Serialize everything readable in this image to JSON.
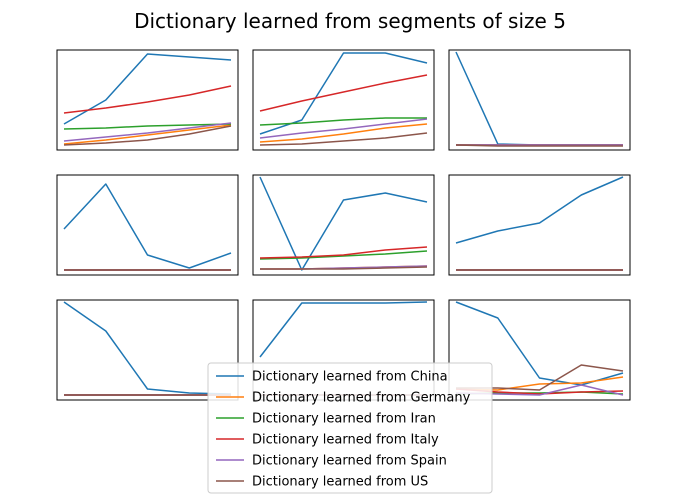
{
  "title": "Dictionary learned from segments of size 5",
  "chart_data": {
    "type": "line",
    "title": "Dictionary learned from segments of size 5",
    "layout": "3x3 grid of small line plots, no axis ticks",
    "legend_placement": "lower-center",
    "x": [
      0,
      1,
      2,
      3,
      4
    ],
    "series_names": [
      "Dictionary learned from China",
      "Dictionary learned from Germany",
      "Dictionary learned from Iran",
      "Dictionary learned from Italy",
      "Dictionary learned from Spain",
      "Dictionary learned from US"
    ],
    "colors": [
      "#1f77b4",
      "#ff7f0e",
      "#2ca02c",
      "#d62728",
      "#9467bd",
      "#8c564b"
    ],
    "panels": [
      {
        "series": [
          [
            0.26,
            0.5,
            0.96,
            0.93,
            0.9
          ],
          [
            0.06,
            0.1,
            0.15,
            0.2,
            0.25
          ],
          [
            0.21,
            0.22,
            0.24,
            0.25,
            0.26
          ],
          [
            0.37,
            0.42,
            0.48,
            0.55,
            0.64
          ],
          [
            0.09,
            0.13,
            0.17,
            0.22,
            0.27
          ],
          [
            0.05,
            0.07,
            0.1,
            0.16,
            0.24
          ]
        ]
      },
      {
        "series": [
          [
            0.16,
            0.3,
            0.97,
            0.97,
            0.87
          ],
          [
            0.08,
            0.11,
            0.16,
            0.22,
            0.26
          ],
          [
            0.25,
            0.27,
            0.3,
            0.32,
            0.32
          ],
          [
            0.39,
            0.49,
            0.58,
            0.67,
            0.75
          ],
          [
            0.12,
            0.17,
            0.21,
            0.26,
            0.31
          ],
          [
            0.05,
            0.06,
            0.09,
            0.12,
            0.17
          ]
        ]
      },
      {
        "series": [
          [
            0.98,
            0.06,
            0.05,
            0.05,
            0.05
          ],
          [
            0.05,
            0.05,
            0.05,
            0.05,
            0.05
          ],
          [
            0.05,
            0.05,
            0.05,
            0.05,
            0.05
          ],
          [
            0.05,
            0.05,
            0.05,
            0.05,
            0.05
          ],
          [
            0.05,
            0.05,
            0.05,
            0.05,
            0.05
          ],
          [
            0.05,
            0.04,
            0.04,
            0.04,
            0.04
          ]
        ]
      },
      {
        "series": [
          [
            0.46,
            0.91,
            0.2,
            0.07,
            0.22
          ],
          [
            0.05,
            0.05,
            0.05,
            0.05,
            0.05
          ],
          [
            0.05,
            0.05,
            0.05,
            0.05,
            0.05
          ],
          [
            0.05,
            0.05,
            0.05,
            0.05,
            0.05
          ],
          [
            0.05,
            0.05,
            0.05,
            0.05,
            0.05
          ],
          [
            0.05,
            0.05,
            0.05,
            0.05,
            0.05
          ]
        ]
      },
      {
        "series": [
          [
            0.98,
            0.05,
            0.75,
            0.82,
            0.73
          ],
          [
            0.06,
            0.06,
            0.07,
            0.08,
            0.09
          ],
          [
            0.16,
            0.17,
            0.19,
            0.21,
            0.24
          ],
          [
            0.17,
            0.18,
            0.2,
            0.25,
            0.28
          ],
          [
            0.06,
            0.06,
            0.07,
            0.08,
            0.09
          ],
          [
            0.06,
            0.06,
            0.06,
            0.07,
            0.08
          ]
        ]
      },
      {
        "series": [
          [
            0.32,
            0.44,
            0.52,
            0.8,
            0.98
          ],
          [
            0.05,
            0.05,
            0.05,
            0.05,
            0.05
          ],
          [
            0.05,
            0.05,
            0.05,
            0.05,
            0.05
          ],
          [
            0.05,
            0.05,
            0.05,
            0.05,
            0.05
          ],
          [
            0.05,
            0.05,
            0.05,
            0.05,
            0.05
          ],
          [
            0.05,
            0.05,
            0.05,
            0.05,
            0.05
          ]
        ]
      },
      {
        "series": [
          [
            0.98,
            0.69,
            0.11,
            0.07,
            0.06
          ],
          [
            0.05,
            0.05,
            0.05,
            0.05,
            0.05
          ],
          [
            0.05,
            0.05,
            0.05,
            0.05,
            0.05
          ],
          [
            0.05,
            0.05,
            0.05,
            0.05,
            0.05
          ],
          [
            0.05,
            0.05,
            0.05,
            0.05,
            0.05
          ],
          [
            0.05,
            0.05,
            0.05,
            0.05,
            0.05
          ]
        ]
      },
      {
        "series": [
          [
            0.43,
            0.97,
            0.97,
            0.97,
            0.98
          ],
          [
            0.05,
            0.05,
            0.05,
            0.05,
            0.05
          ],
          [
            0.05,
            0.05,
            0.05,
            0.05,
            0.05
          ],
          [
            0.05,
            0.05,
            0.05,
            0.05,
            0.05
          ],
          [
            0.05,
            0.05,
            0.05,
            0.05,
            0.05
          ],
          [
            0.05,
            0.05,
            0.05,
            0.05,
            0.05
          ]
        ]
      },
      {
        "series": [
          [
            0.98,
            0.82,
            0.22,
            0.15,
            0.27
          ],
          [
            0.11,
            0.1,
            0.16,
            0.17,
            0.23
          ],
          [
            0.06,
            0.07,
            0.07,
            0.08,
            0.06
          ],
          [
            0.11,
            0.08,
            0.06,
            0.08,
            0.09
          ],
          [
            0.07,
            0.06,
            0.05,
            0.15,
            0.05
          ],
          [
            0.12,
            0.12,
            0.1,
            0.35,
            0.29
          ]
        ]
      }
    ]
  }
}
